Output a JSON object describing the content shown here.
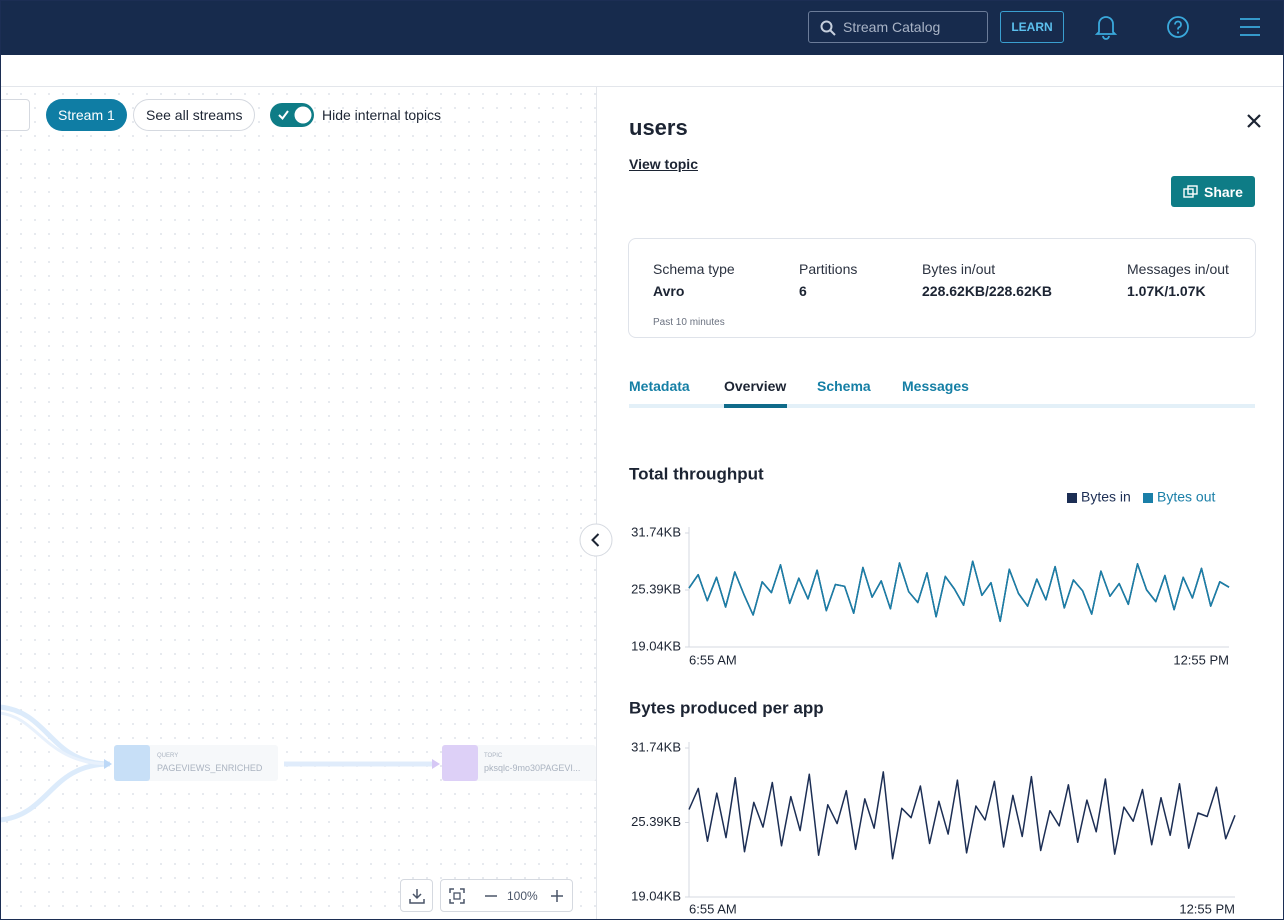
{
  "header": {
    "search_placeholder": "Stream Catalog",
    "learn": "LEARN"
  },
  "toolbar": {
    "stream": "Stream 1",
    "see_all": "See all streams",
    "toggle": "Hide internal topics"
  },
  "canvas": {
    "nodes": [
      {
        "kind": "QUERY",
        "label": "PAGEVIEWS_ENRICHED"
      },
      {
        "kind": "TOPIC",
        "label": "pksqlc-9mo30PAGEVI..."
      }
    ],
    "zoom": "100%"
  },
  "panel": {
    "title": "users",
    "view_topic": "View topic",
    "share": "Share",
    "stats": [
      {
        "label": "Schema type",
        "value": "Avro"
      },
      {
        "label": "Partitions",
        "value": "6"
      },
      {
        "label": "Bytes in/out",
        "value": "228.62KB/228.62KB"
      },
      {
        "label": "Messages in/out",
        "value": "1.07K/1.07K"
      }
    ],
    "stats_note": "Past 10 minutes",
    "tabs": [
      "Metadata",
      "Overview",
      "Schema",
      "Messages"
    ]
  },
  "charts": [
    {
      "type": "line",
      "title": "Total throughput",
      "categories": [
        "6:55 AM",
        null,
        null,
        null,
        null,
        null,
        null,
        null,
        null,
        null,
        null,
        null,
        null,
        null,
        null,
        null,
        null,
        null,
        null,
        null,
        null,
        null,
        null,
        null,
        null,
        null,
        null,
        null,
        null,
        null,
        null,
        null,
        null,
        null,
        null,
        null,
        null,
        null,
        null,
        null,
        null,
        null,
        null,
        null,
        null,
        null,
        null,
        null,
        null,
        null,
        null,
        null,
        null,
        null,
        null,
        null,
        null,
        null,
        null,
        "12:55 PM"
      ],
      "series": [
        {
          "name": "Bytes in",
          "color": "#1c2e54",
          "values": [
            25.6,
            27.1,
            24.2,
            26.8,
            23.5,
            27.4,
            24.9,
            22.6,
            26.3,
            25.1,
            28.2,
            23.9,
            26.7,
            24.4,
            27.6,
            23.1,
            26.0,
            25.8,
            22.8,
            27.9,
            24.6,
            26.4,
            23.3,
            28.4,
            25.2,
            24.0,
            27.3,
            22.4,
            26.9,
            25.5,
            23.7,
            28.6,
            24.8,
            26.2,
            21.9,
            27.7,
            25.0,
            23.6,
            26.6,
            24.3,
            28.0,
            23.4,
            26.5,
            25.3,
            22.7,
            27.5,
            24.7,
            26.1,
            23.8,
            28.3,
            25.4,
            24.1,
            27.0,
            23.2,
            26.8,
            24.5,
            27.8,
            23.6,
            26.3,
            25.7
          ]
        },
        {
          "name": "Bytes out",
          "color": "#1a7fa8",
          "values": [
            25.6,
            27.1,
            24.2,
            26.8,
            23.5,
            27.4,
            24.9,
            22.6,
            26.3,
            25.1,
            28.2,
            23.9,
            26.7,
            24.4,
            27.6,
            23.1,
            26.0,
            25.8,
            22.8,
            27.9,
            24.6,
            26.4,
            23.3,
            28.4,
            25.2,
            24.0,
            27.3,
            22.4,
            26.9,
            25.5,
            23.7,
            28.6,
            24.8,
            26.2,
            21.9,
            27.7,
            25.0,
            23.6,
            26.6,
            24.3,
            28.0,
            23.4,
            26.5,
            25.3,
            22.7,
            27.5,
            24.7,
            26.1,
            23.8,
            28.3,
            25.4,
            24.1,
            27.0,
            23.2,
            26.8,
            24.5,
            27.8,
            23.6,
            26.3,
            25.7
          ]
        }
      ],
      "ylim": [
        19.04,
        31.74
      ],
      "yticks": [
        {
          "value": 19.04,
          "label": "19.04KB"
        },
        {
          "value": 25.39,
          "label": "25.39KB"
        },
        {
          "value": 31.74,
          "label": "31.74KB"
        }
      ]
    },
    {
      "type": "line",
      "title": "Bytes produced per app",
      "categories": [
        "6:55 AM",
        null,
        null,
        null,
        null,
        null,
        null,
        null,
        null,
        null,
        null,
        null,
        null,
        null,
        null,
        null,
        null,
        null,
        null,
        null,
        null,
        null,
        null,
        null,
        null,
        null,
        null,
        null,
        null,
        null,
        null,
        null,
        null,
        null,
        null,
        null,
        null,
        null,
        null,
        null,
        null,
        null,
        null,
        null,
        null,
        null,
        null,
        null,
        null,
        null,
        null,
        null,
        null,
        null,
        null,
        null,
        null,
        null,
        null,
        "12:55 PM"
      ],
      "series": [
        {
          "color": "#1c2e54",
          "values": [
            26.5,
            28.3,
            23.8,
            27.9,
            24.1,
            29.2,
            22.9,
            27.1,
            25.0,
            28.8,
            23.4,
            27.6,
            24.7,
            29.5,
            22.6,
            26.9,
            25.3,
            28.1,
            23.1,
            27.4,
            24.9,
            29.7,
            22.3,
            26.6,
            25.8,
            28.5,
            23.6,
            27.2,
            24.4,
            29.0,
            22.8,
            26.8,
            25.6,
            28.9,
            23.3,
            27.7,
            24.2,
            29.3,
            23.0,
            26.4,
            25.1,
            28.6,
            23.7,
            27.3,
            24.6,
            29.1,
            22.7,
            26.7,
            25.5,
            28.2,
            23.5,
            27.5,
            24.3,
            28.7,
            23.2,
            26.2,
            25.9,
            28.4,
            24.0,
            26.0
          ]
        }
      ],
      "ylim": [
        19.04,
        31.74
      ],
      "yticks": [
        {
          "value": 19.04,
          "label": "19.04KB"
        },
        {
          "value": 25.39,
          "label": "25.39KB"
        },
        {
          "value": 31.74,
          "label": "31.74KB"
        }
      ]
    }
  ]
}
